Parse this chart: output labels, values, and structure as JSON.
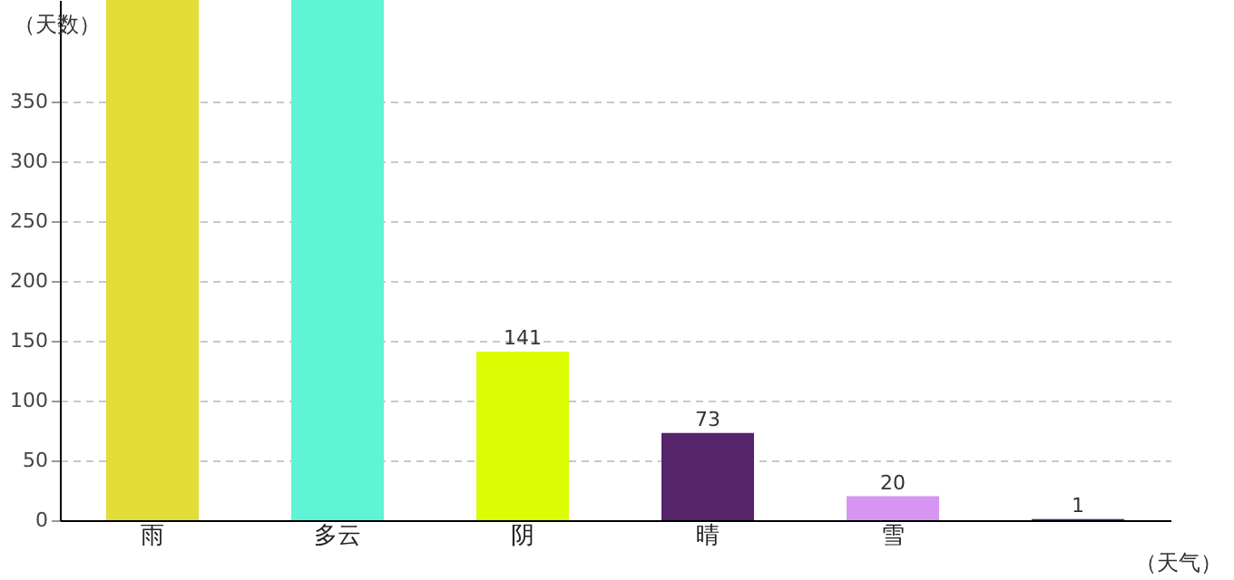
{
  "chart_data": {
    "type": "bar",
    "xlabel": "（天气）",
    "ylabel": "（天数）",
    "categories": [
      "雨",
      "多云",
      "阴",
      "晴",
      "雪",
      null
    ],
    "values": [
      435,
      435,
      141,
      73,
      20,
      1
    ],
    "colors": [
      "#e3dd38",
      "#5ef5d4",
      "#dcfc04",
      "#55246b",
      "#d595f0",
      "#55246b"
    ],
    "value_labels": [
      null,
      null,
      "141",
      "73",
      "20",
      "1"
    ],
    "ylim": [
      0,
      435
    ],
    "yticks": [
      0,
      50,
      100,
      150,
      200,
      250,
      300,
      350
    ],
    "grid": "y"
  }
}
